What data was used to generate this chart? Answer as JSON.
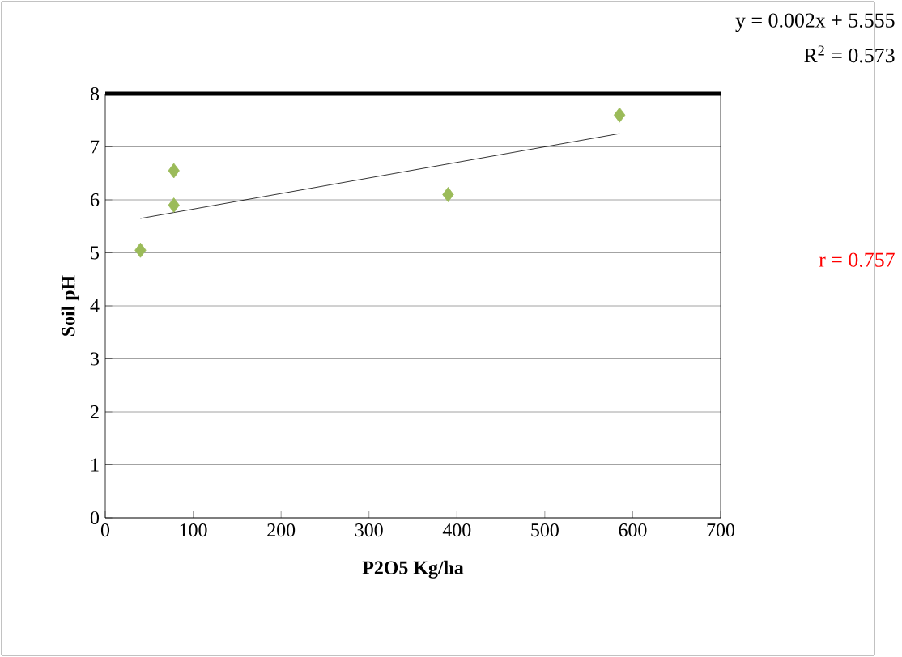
{
  "chart_data": {
    "type": "scatter",
    "xlabel": "P2O5 Kg/ha",
    "ylabel": "Soil pH",
    "xlim": [
      0,
      700
    ],
    "ylim": [
      0,
      8
    ],
    "xticks": [
      0,
      100,
      200,
      300,
      400,
      500,
      600,
      700
    ],
    "yticks": [
      0,
      1,
      2,
      3,
      4,
      5,
      6,
      7,
      8
    ],
    "grid": "y",
    "series": [
      {
        "marker": "diamond",
        "color": "#9bbb59",
        "x": [
          40,
          78,
          78,
          390,
          585
        ],
        "values": [
          5.05,
          6.55,
          5.9,
          6.1,
          7.6
        ]
      },
      {
        "type": "line",
        "marker": "none",
        "color": "#000000",
        "x": [
          40,
          585
        ],
        "values": [
          5.65,
          7.25
        ]
      }
    ],
    "annotations": [
      "y = 0.002x + 5.555",
      "R$^{2}$ = 0.573",
      "r = 0.757"
    ]
  }
}
